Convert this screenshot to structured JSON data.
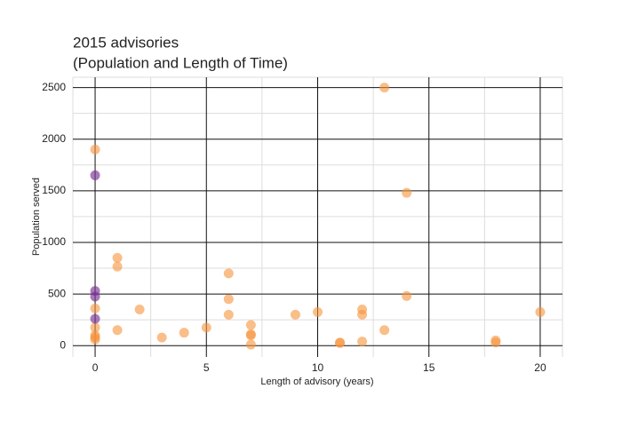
{
  "chart_data": {
    "type": "scatter",
    "title": [
      "2015 advisories",
      "(Population and Length of Time)"
    ],
    "x_label": "Length of advisory (years)",
    "y_label": "Population served",
    "xlim": [
      -1,
      21
    ],
    "xticks": [
      0,
      5,
      10,
      15,
      20
    ],
    "ylim": [
      -110,
      2600
    ],
    "yticks": [
      0,
      500,
      1000,
      1500,
      2000,
      2500
    ],
    "grid": true,
    "series": [
      {
        "color": "#f7923a",
        "x": [
          0,
          0,
          0,
          0,
          0,
          0,
          1,
          1,
          1,
          2,
          3,
          4,
          5,
          6,
          6,
          6,
          7,
          7,
          7,
          7,
          9,
          10,
          11,
          11,
          12,
          12,
          12,
          13,
          13,
          14,
          14,
          18,
          18,
          20
        ],
        "values": [
          1900,
          360,
          175,
          100,
          80,
          60,
          850,
          765,
          150,
          350,
          78,
          125,
          175,
          700,
          450,
          300,
          200,
          110,
          100,
          10,
          300,
          325,
          30,
          25,
          350,
          300,
          40,
          2500,
          150,
          1480,
          480,
          50,
          30,
          325
        ]
      },
      {
        "color": "#7b3294",
        "x": [
          0,
          0,
          0,
          0
        ],
        "values": [
          1650,
          530,
          475,
          260
        ]
      }
    ]
  }
}
